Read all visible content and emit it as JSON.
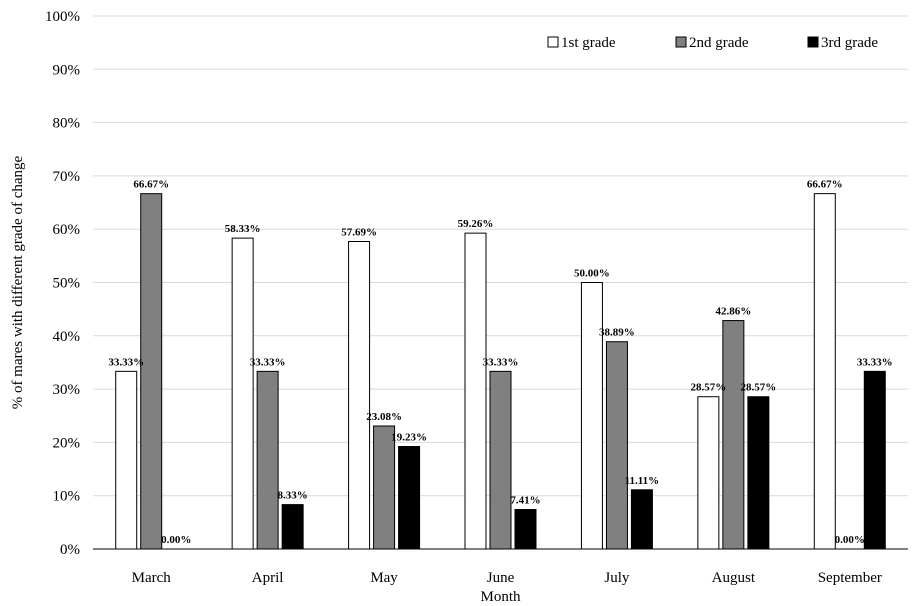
{
  "chart_data": {
    "type": "bar",
    "categories": [
      "March",
      "April",
      "May",
      "June",
      "July",
      "August",
      "September"
    ],
    "series": [
      {
        "name": "1st grade",
        "color": "#ffffff",
        "values": [
          33.33,
          58.33,
          57.69,
          59.26,
          50.0,
          28.57,
          66.67
        ],
        "labels": [
          "33.33%",
          "58.33%",
          "57.69%",
          "59.26%",
          "50.00%",
          "28.57%",
          "66.67%"
        ]
      },
      {
        "name": "2nd grade",
        "color": "#808080",
        "values": [
          66.67,
          33.33,
          23.08,
          33.33,
          38.89,
          42.86,
          0.0
        ],
        "labels": [
          "66.67%",
          "33.33%",
          "23.08%",
          "33.33%",
          "38.89%",
          "42.86%",
          "0.00%"
        ]
      },
      {
        "name": "3rd grade",
        "color": "#000000",
        "values": [
          0.0,
          8.33,
          19.23,
          7.41,
          11.11,
          28.57,
          33.33
        ],
        "labels": [
          "0.00%",
          "8.33%",
          "19.23%",
          "7.41%",
          "11.11%",
          "28.57%",
          "33.33%"
        ]
      }
    ],
    "title": "",
    "xlabel": "Month",
    "ylabel": "% of mares  with different grade of change",
    "ylim": [
      0,
      100
    ],
    "yticks": [
      0,
      10,
      20,
      30,
      40,
      50,
      60,
      70,
      80,
      90,
      100
    ],
    "ytick_labels": [
      "0%",
      "10%",
      "20%",
      "30%",
      "40%",
      "50%",
      "60%",
      "70%",
      "80%",
      "90%",
      "100%"
    ],
    "grid": true,
    "legend_position": "top-right"
  }
}
